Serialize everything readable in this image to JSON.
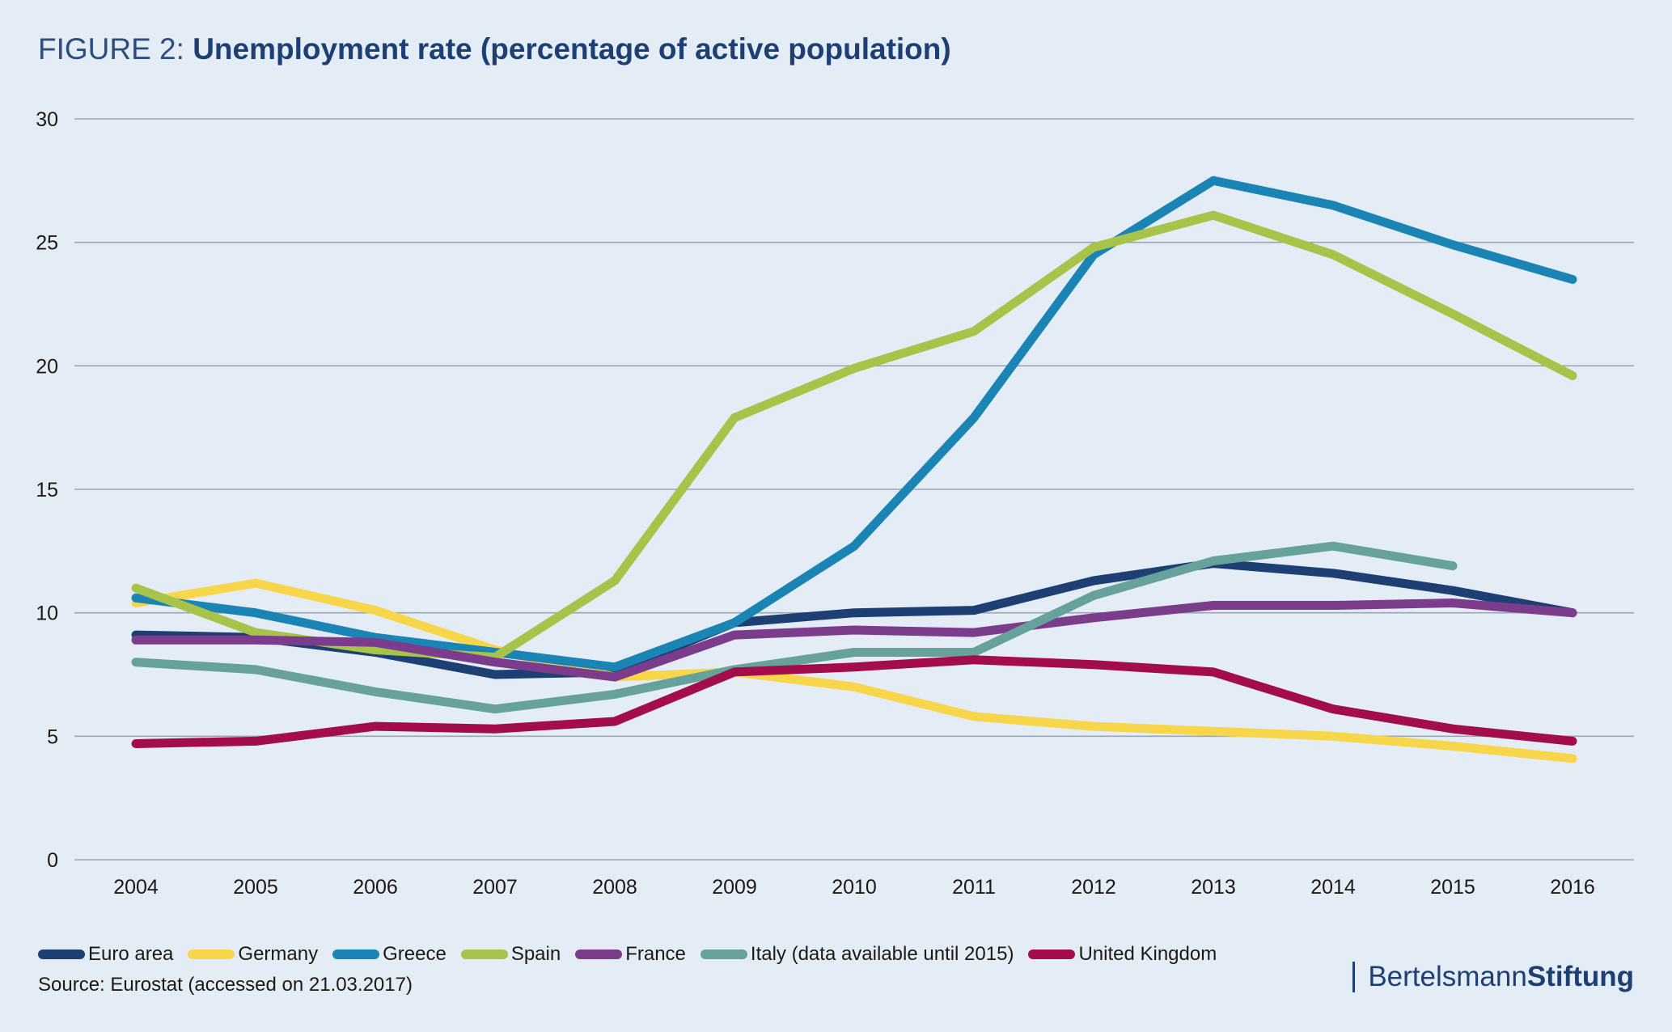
{
  "header": {
    "figure_label": "FIGURE 2: ",
    "title": "Unemployment rate (percentage of active population)"
  },
  "chart_data": {
    "type": "line",
    "title": "Unemployment rate (percentage of active population)",
    "xlabel": "",
    "ylabel": "",
    "x": [
      "2004",
      "2005",
      "2006",
      "2007",
      "2008",
      "2009",
      "2010",
      "2011",
      "2012",
      "2013",
      "2014",
      "2015",
      "2016"
    ],
    "ylim": [
      0,
      30
    ],
    "yticks": [
      0,
      5,
      10,
      15,
      20,
      25,
      30
    ],
    "grid": true,
    "legend_position": "bottom-left",
    "series": [
      {
        "name": "Euro area",
        "color": "#1d3f73",
        "values": [
          9.1,
          9.0,
          8.4,
          7.5,
          7.6,
          9.6,
          10.0,
          10.1,
          11.3,
          12.0,
          11.6,
          10.9,
          10.0
        ]
      },
      {
        "name": "Germany",
        "color": "#f7d64c",
        "values": [
          10.4,
          11.2,
          10.1,
          8.5,
          7.4,
          7.6,
          7.0,
          5.8,
          5.4,
          5.2,
          5.0,
          4.6,
          4.1
        ]
      },
      {
        "name": "Greece",
        "color": "#1a84b5",
        "values": [
          10.6,
          10.0,
          9.0,
          8.4,
          7.8,
          9.6,
          12.7,
          17.9,
          24.5,
          27.5,
          26.5,
          24.9,
          23.5
        ]
      },
      {
        "name": "Spain",
        "color": "#a8c34a",
        "values": [
          11.0,
          9.2,
          8.5,
          8.2,
          11.3,
          17.9,
          19.9,
          21.4,
          24.8,
          26.1,
          24.5,
          22.1,
          19.6
        ]
      },
      {
        "name": "France",
        "color": "#7b3c8c",
        "values": [
          8.9,
          8.9,
          8.8,
          8.0,
          7.4,
          9.1,
          9.3,
          9.2,
          9.8,
          10.3,
          10.3,
          10.4,
          10.0
        ]
      },
      {
        "name": "Italy (data available until 2015)",
        "color": "#66a19c",
        "values": [
          8.0,
          7.7,
          6.8,
          6.1,
          6.7,
          7.7,
          8.4,
          8.4,
          10.7,
          12.1,
          12.7,
          11.9,
          null
        ]
      },
      {
        "name": "United Kingdom",
        "color": "#a30d4b",
        "values": [
          4.7,
          4.8,
          5.4,
          5.3,
          5.6,
          7.6,
          7.8,
          8.1,
          7.9,
          7.6,
          6.1,
          5.3,
          4.8
        ]
      }
    ]
  },
  "footer": {
    "source": "Source: Eurostat (accessed on 21.03.2017)",
    "brand_part1": "Bertelsmann",
    "brand_part2": "Stiftung"
  }
}
